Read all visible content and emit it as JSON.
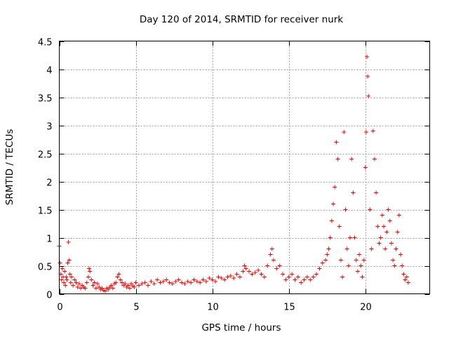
{
  "chart_data": {
    "type": "scatter",
    "title": "Day 120 of 2014, SRMTID for receiver nurk",
    "xlabel": "GPS time / hours",
    "ylabel": "SRMTID / TECUs",
    "xlim": [
      0,
      24.2
    ],
    "ylim": [
      0,
      4.5
    ],
    "xticks": [
      0,
      5,
      10,
      15,
      20
    ],
    "xtick_labels": [
      "0",
      "5",
      "10",
      "15",
      "20"
    ],
    "yticks": [
      0,
      0.5,
      1,
      1.5,
      2,
      2.5,
      3,
      3.5,
      4,
      4.5
    ],
    "ytick_labels": [
      "0",
      "0.5",
      "1",
      "1.5",
      "2",
      "2.5",
      "3",
      "3.5",
      "4",
      "4.5"
    ],
    "grid": true,
    "marker": "+",
    "color": "#ff0000",
    "series": [
      {
        "name": "SRMTID",
        "points": [
          [
            0.0,
            0.85
          ],
          [
            0.05,
            0.55
          ],
          [
            0.1,
            0.35
          ],
          [
            0.15,
            0.25
          ],
          [
            0.2,
            0.45
          ],
          [
            0.25,
            0.3
          ],
          [
            0.3,
            0.2
          ],
          [
            0.35,
            0.4
          ],
          [
            0.4,
            0.15
          ],
          [
            0.45,
            0.3
          ],
          [
            0.5,
            0.25
          ],
          [
            0.55,
            0.55
          ],
          [
            0.6,
            0.92
          ],
          [
            0.65,
            0.6
          ],
          [
            0.7,
            0.35
          ],
          [
            0.75,
            0.2
          ],
          [
            0.8,
            0.3
          ],
          [
            0.9,
            0.15
          ],
          [
            1.0,
            0.25
          ],
          [
            1.1,
            0.2
          ],
          [
            1.2,
            0.12
          ],
          [
            1.3,
            0.18
          ],
          [
            1.4,
            0.1
          ],
          [
            1.5,
            0.15
          ],
          [
            1.6,
            0.12
          ],
          [
            1.7,
            0.1
          ],
          [
            1.8,
            0.2
          ],
          [
            1.9,
            0.3
          ],
          [
            1.95,
            0.45
          ],
          [
            2.0,
            0.4
          ],
          [
            2.1,
            0.25
          ],
          [
            2.2,
            0.15
          ],
          [
            2.3,
            0.2
          ],
          [
            2.4,
            0.1
          ],
          [
            2.5,
            0.18
          ],
          [
            2.6,
            0.12
          ],
          [
            2.7,
            0.08
          ],
          [
            2.8,
            0.1
          ],
          [
            2.9,
            0.06
          ],
          [
            3.0,
            0.05
          ],
          [
            3.1,
            0.1
          ],
          [
            3.2,
            0.08
          ],
          [
            3.3,
            0.12
          ],
          [
            3.4,
            0.15
          ],
          [
            3.5,
            0.1
          ],
          [
            3.6,
            0.18
          ],
          [
            3.7,
            0.2
          ],
          [
            3.8,
            0.3
          ],
          [
            3.9,
            0.35
          ],
          [
            4.0,
            0.25
          ],
          [
            4.1,
            0.2
          ],
          [
            4.2,
            0.15
          ],
          [
            4.3,
            0.18
          ],
          [
            4.4,
            0.12
          ],
          [
            4.5,
            0.15
          ],
          [
            4.6,
            0.1
          ],
          [
            4.7,
            0.18
          ],
          [
            4.8,
            0.14
          ],
          [
            4.9,
            0.12
          ],
          [
            5.0,
            0.2
          ],
          [
            5.2,
            0.15
          ],
          [
            5.4,
            0.18
          ],
          [
            5.6,
            0.2
          ],
          [
            5.8,
            0.15
          ],
          [
            6.0,
            0.22
          ],
          [
            6.2,
            0.18
          ],
          [
            6.4,
            0.25
          ],
          [
            6.6,
            0.2
          ],
          [
            6.8,
            0.22
          ],
          [
            7.0,
            0.25
          ],
          [
            7.2,
            0.2
          ],
          [
            7.4,
            0.18
          ],
          [
            7.6,
            0.22
          ],
          [
            7.8,
            0.25
          ],
          [
            8.0,
            0.2
          ],
          [
            8.2,
            0.18
          ],
          [
            8.4,
            0.22
          ],
          [
            8.6,
            0.2
          ],
          [
            8.8,
            0.25
          ],
          [
            9.0,
            0.22
          ],
          [
            9.2,
            0.2
          ],
          [
            9.4,
            0.25
          ],
          [
            9.6,
            0.22
          ],
          [
            9.8,
            0.28
          ],
          [
            10.0,
            0.25
          ],
          [
            10.2,
            0.22
          ],
          [
            10.4,
            0.3
          ],
          [
            10.6,
            0.28
          ],
          [
            10.8,
            0.25
          ],
          [
            11.0,
            0.3
          ],
          [
            11.2,
            0.32
          ],
          [
            11.4,
            0.28
          ],
          [
            11.6,
            0.35
          ],
          [
            11.8,
            0.3
          ],
          [
            12.0,
            0.4
          ],
          [
            12.1,
            0.5
          ],
          [
            12.2,
            0.45
          ],
          [
            12.4,
            0.4
          ],
          [
            12.6,
            0.35
          ],
          [
            12.8,
            0.38
          ],
          [
            13.0,
            0.42
          ],
          [
            13.2,
            0.35
          ],
          [
            13.4,
            0.3
          ],
          [
            13.6,
            0.5
          ],
          [
            13.8,
            0.7
          ],
          [
            13.9,
            0.8
          ],
          [
            14.0,
            0.6
          ],
          [
            14.2,
            0.45
          ],
          [
            14.4,
            0.5
          ],
          [
            14.6,
            0.35
          ],
          [
            14.8,
            0.25
          ],
          [
            15.0,
            0.3
          ],
          [
            15.2,
            0.35
          ],
          [
            15.4,
            0.25
          ],
          [
            15.6,
            0.3
          ],
          [
            15.8,
            0.2
          ],
          [
            16.0,
            0.25
          ],
          [
            16.2,
            0.3
          ],
          [
            16.4,
            0.25
          ],
          [
            16.6,
            0.3
          ],
          [
            16.8,
            0.35
          ],
          [
            17.0,
            0.45
          ],
          [
            17.2,
            0.55
          ],
          [
            17.4,
            0.6
          ],
          [
            17.5,
            0.7
          ],
          [
            17.6,
            0.8
          ],
          [
            17.7,
            1.0
          ],
          [
            17.8,
            1.3
          ],
          [
            17.9,
            1.6
          ],
          [
            18.0,
            1.9
          ],
          [
            18.1,
            2.7
          ],
          [
            18.2,
            2.4
          ],
          [
            18.3,
            1.2
          ],
          [
            18.4,
            0.6
          ],
          [
            18.5,
            0.3
          ],
          [
            18.6,
            2.88
          ],
          [
            18.7,
            1.5
          ],
          [
            18.8,
            0.8
          ],
          [
            18.9,
            0.5
          ],
          [
            19.0,
            1.0
          ],
          [
            19.1,
            2.4
          ],
          [
            19.2,
            1.8
          ],
          [
            19.3,
            1.0
          ],
          [
            19.4,
            0.6
          ],
          [
            19.5,
            0.4
          ],
          [
            19.6,
            0.7
          ],
          [
            19.7,
            0.5
          ],
          [
            19.8,
            0.3
          ],
          [
            19.9,
            0.6
          ],
          [
            20.0,
            2.25
          ],
          [
            20.05,
            2.88
          ],
          [
            20.1,
            4.22
          ],
          [
            20.15,
            3.87
          ],
          [
            20.2,
            3.52
          ],
          [
            20.3,
            1.5
          ],
          [
            20.4,
            0.8
          ],
          [
            20.5,
            2.9
          ],
          [
            20.6,
            2.4
          ],
          [
            20.7,
            1.8
          ],
          [
            20.8,
            1.2
          ],
          [
            20.9,
            0.9
          ],
          [
            21.0,
            1.0
          ],
          [
            21.1,
            1.4
          ],
          [
            21.2,
            1.2
          ],
          [
            21.3,
            0.8
          ],
          [
            21.4,
            1.1
          ],
          [
            21.5,
            1.5
          ],
          [
            21.6,
            1.3
          ],
          [
            21.7,
            0.9
          ],
          [
            21.8,
            0.6
          ],
          [
            21.9,
            0.5
          ],
          [
            22.0,
            0.8
          ],
          [
            22.1,
            1.1
          ],
          [
            22.2,
            1.4
          ],
          [
            22.3,
            0.7
          ],
          [
            22.4,
            0.5
          ],
          [
            22.5,
            0.35
          ],
          [
            22.6,
            0.25
          ],
          [
            22.7,
            0.3
          ],
          [
            22.8,
            0.2
          ]
        ]
      }
    ]
  }
}
